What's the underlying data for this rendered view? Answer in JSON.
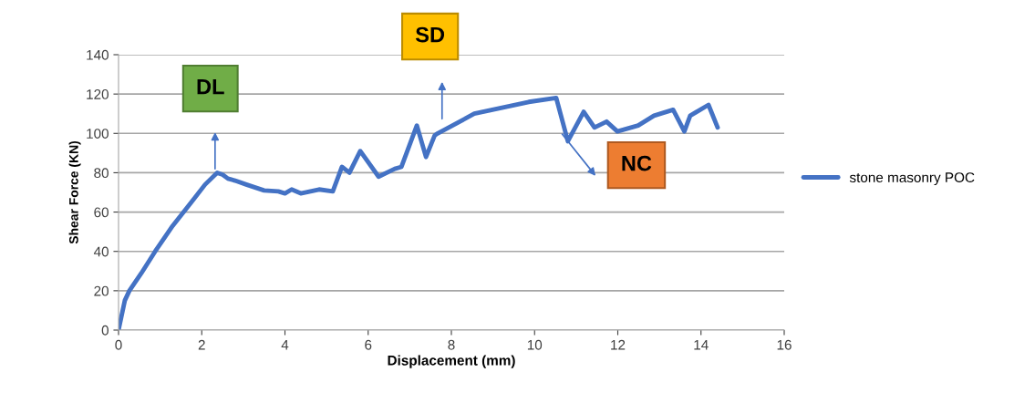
{
  "chart_data": {
    "type": "line",
    "xlabel": "Displacement (mm)",
    "ylabel": "Shear Force (KN)",
    "xlim": [
      0,
      16
    ],
    "xticks": [
      0,
      2,
      4,
      6,
      8,
      10,
      12,
      14,
      16
    ],
    "ylim": [
      0,
      140
    ],
    "yticks": [
      0,
      20,
      40,
      60,
      80,
      100,
      120,
      140
    ],
    "grid": "y",
    "legend": "right",
    "marker": "none",
    "line_style": "solid",
    "series": [
      {
        "name": "stone masonry POC",
        "color": "#4472c4",
        "x": [
          0,
          0.15,
          0.26,
          0.55,
          0.88,
          1.3,
          1.75,
          2.08,
          2.37,
          2.5,
          2.63,
          2.8,
          3.07,
          3.5,
          3.84,
          4.0,
          4.16,
          4.38,
          4.82,
          5.15,
          5.37,
          5.55,
          5.81,
          6.25,
          6.64,
          6.8,
          7.17,
          7.39,
          7.6,
          7.67,
          8.55,
          9.86,
          10.52,
          10.8,
          11.18,
          11.44,
          11.73,
          11.99,
          12.49,
          12.87,
          13.33,
          13.6,
          13.74,
          14.18,
          14.4
        ],
        "values": [
          0,
          15,
          20,
          29,
          40,
          53,
          65,
          74,
          80,
          79,
          77,
          76,
          74,
          71,
          70.5,
          69.5,
          71.5,
          69.5,
          71.5,
          70.5,
          83,
          80,
          91,
          78,
          82,
          83,
          104,
          88,
          99,
          100,
          110,
          116,
          118,
          96,
          111,
          103,
          106,
          101,
          104,
          109,
          112,
          101,
          109,
          114.5,
          103
        ]
      }
    ],
    "annotations": [
      "DL",
      "SD",
      "NC"
    ]
  }
}
